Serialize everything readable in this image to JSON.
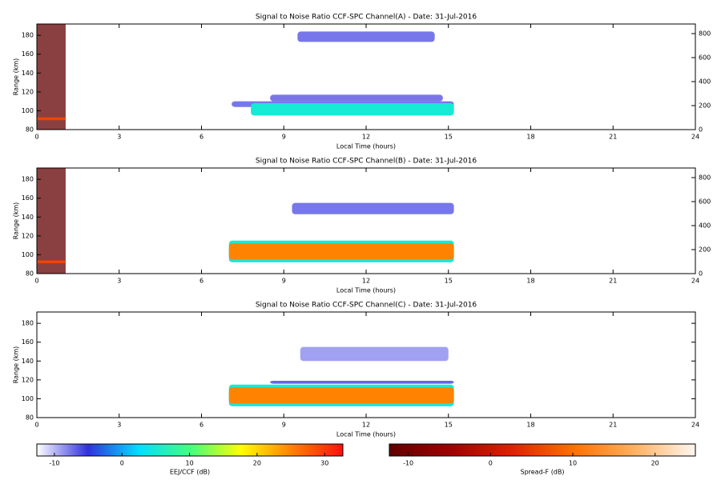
{
  "chart_data": [
    {
      "type": "rti",
      "title": "Signal to Noise Ratio CCF-SPC Channel(A) - Date: 31-Jul-2016",
      "x_label": "Local Time (hours)",
      "y_label": "Range (km)",
      "xlim": [
        0,
        24
      ],
      "xticks": [
        0,
        3,
        6,
        9,
        12,
        15,
        18,
        21,
        24
      ],
      "ylim": [
        80,
        192
      ],
      "yticks": [
        80,
        100,
        120,
        140,
        160,
        180
      ],
      "y2lim": [
        0,
        880
      ],
      "y2ticks": [
        0,
        200,
        400,
        600,
        800
      ],
      "regions": [
        {
          "x": [
            0,
            1.05
          ],
          "y": [
            80,
            192
          ],
          "value": -12,
          "scale": "spreadf"
        },
        {
          "x": [
            0,
            1.05
          ],
          "y": [
            90,
            93
          ],
          "value": 6,
          "scale": "spreadf"
        },
        {
          "x": [
            7.1,
            15.2
          ],
          "y": [
            104,
            110
          ],
          "value": -6,
          "scale": "eej"
        },
        {
          "x": [
            7.8,
            15.2
          ],
          "y": [
            95,
            108
          ],
          "value": 5,
          "scale": "eej"
        },
        {
          "x": [
            8.5,
            14.8
          ],
          "y": [
            110,
            117
          ],
          "value": -6,
          "scale": "eej"
        },
        {
          "x": [
            9.5,
            14.5
          ],
          "y": [
            173,
            184
          ],
          "value": -6,
          "scale": "eej"
        }
      ]
    },
    {
      "type": "rti",
      "title": "Signal to Noise Ratio CCF-SPC Channel(B) - Date: 31-Jul-2016",
      "x_label": "Local Time (hours)",
      "y_label": "Range (km)",
      "xlim": [
        0,
        24
      ],
      "xticks": [
        0,
        3,
        6,
        9,
        12,
        15,
        18,
        21,
        24
      ],
      "ylim": [
        80,
        192
      ],
      "yticks": [
        80,
        100,
        120,
        140,
        160,
        180
      ],
      "y2lim": [
        0,
        880
      ],
      "y2ticks": [
        0,
        200,
        400,
        600,
        800
      ],
      "regions": [
        {
          "x": [
            0,
            1.05
          ],
          "y": [
            80,
            192
          ],
          "value": -12,
          "scale": "spreadf"
        },
        {
          "x": [
            0,
            1.05
          ],
          "y": [
            91,
            94
          ],
          "value": 6,
          "scale": "spreadf"
        },
        {
          "x": [
            7.0,
            15.2
          ],
          "y": [
            92,
            115
          ],
          "value": 5,
          "scale": "eej"
        },
        {
          "x": [
            7.0,
            15.2
          ],
          "y": [
            95,
            112
          ],
          "value": 25,
          "scale": "eej"
        },
        {
          "x": [
            9.3,
            15.2
          ],
          "y": [
            143,
            155
          ],
          "value": -6,
          "scale": "eej"
        }
      ]
    },
    {
      "type": "rti",
      "title": "Signal to Noise Ratio CCF-SPC Channel(C) - Date: 31-Jul-2016",
      "x_label": "Local Time (hours)",
      "y_label": "Range (km)",
      "xlim": [
        0,
        24
      ],
      "xticks": [
        0,
        3,
        6,
        9,
        12,
        15,
        18,
        21,
        24
      ],
      "ylim": [
        80,
        192
      ],
      "yticks": [
        80,
        100,
        120,
        140,
        160,
        180
      ],
      "regions": [
        {
          "x": [
            7.0,
            15.2
          ],
          "y": [
            92,
            115
          ],
          "value": 5,
          "scale": "eej"
        },
        {
          "x": [
            7.0,
            15.2
          ],
          "y": [
            95,
            112
          ],
          "value": 25,
          "scale": "eej"
        },
        {
          "x": [
            8.5,
            15.2
          ],
          "y": [
            116,
            119
          ],
          "value": -5,
          "scale": "eej"
        },
        {
          "x": [
            9.6,
            15.0
          ],
          "y": [
            140,
            155
          ],
          "value": -8,
          "scale": "eej"
        }
      ]
    },
    {
      "type": "colorbar",
      "name": "eej",
      "label": "EEJ/CCF (dB)",
      "xlim": [
        -12.6,
        32.7
      ],
      "xticks": [
        -10,
        0,
        10,
        20,
        30
      ],
      "colors": [
        "#ffffff",
        "#3030e0",
        "#00e0ff",
        "#40ff80",
        "#ffff00",
        "#ff8000",
        "#ff1010"
      ]
    },
    {
      "type": "colorbar",
      "name": "spreadf",
      "label": "Spread-F (dB)",
      "xlim": [
        -12.3,
        24.9
      ],
      "xticks": [
        -10,
        0,
        10,
        20
      ],
      "colors": [
        "#600000",
        "#a00000",
        "#e02000",
        "#ff7000",
        "#ffb060",
        "#fff8f0"
      ]
    }
  ]
}
